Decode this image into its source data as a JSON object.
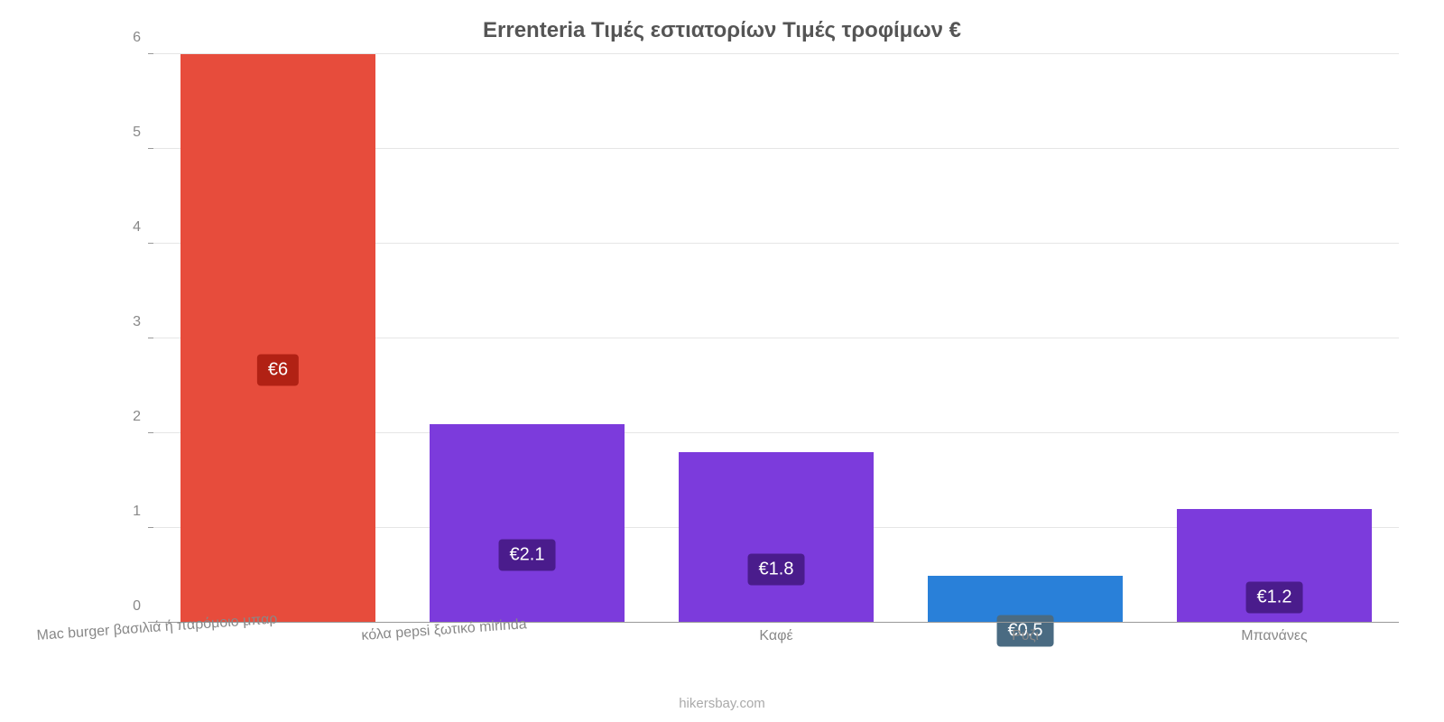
{
  "chart": {
    "type": "bar",
    "title": "Errenteria Τιμές εστιατορίων Τιμές τροφίμων €",
    "title_color": "#555555",
    "title_fontsize": 24,
    "background_color": "#ffffff",
    "grid_color": "#e6e6e6",
    "axis_color": "#999999",
    "tick_label_color": "#888888",
    "tick_fontsize": 16,
    "ylim": [
      0,
      6
    ],
    "ytick_step": 1,
    "yticks": [
      0,
      1,
      2,
      3,
      4,
      5,
      6
    ],
    "bar_width": 0.78,
    "value_label_fontsize": 20,
    "value_label_textcolor": "#ffffff",
    "categories": [
      "Mac burger βασιλιά ή παρόμοιο μπαρ",
      "κόλα pepsi ξωτικό mirinda",
      "Καφέ",
      "Ρύζι",
      "Μπανάνες"
    ],
    "values": [
      6,
      2.1,
      1.8,
      0.5,
      1.2
    ],
    "value_labels": [
      "€6",
      "€2.1",
      "€1.8",
      "€0.5",
      "€1.2"
    ],
    "bar_colors": [
      "#e74c3c",
      "#7c3bdc",
      "#7c3bdc",
      "#2980d9",
      "#7c3bdc"
    ],
    "value_label_bg": [
      "#b12114",
      "#4a1c8c",
      "#4a1c8c",
      "#4a6b82",
      "#4a1c8c"
    ],
    "xlabel_rotated": [
      true,
      true,
      false,
      false,
      false
    ],
    "watermark": "hikersbay.com",
    "watermark_color": "#aaaaaa"
  }
}
